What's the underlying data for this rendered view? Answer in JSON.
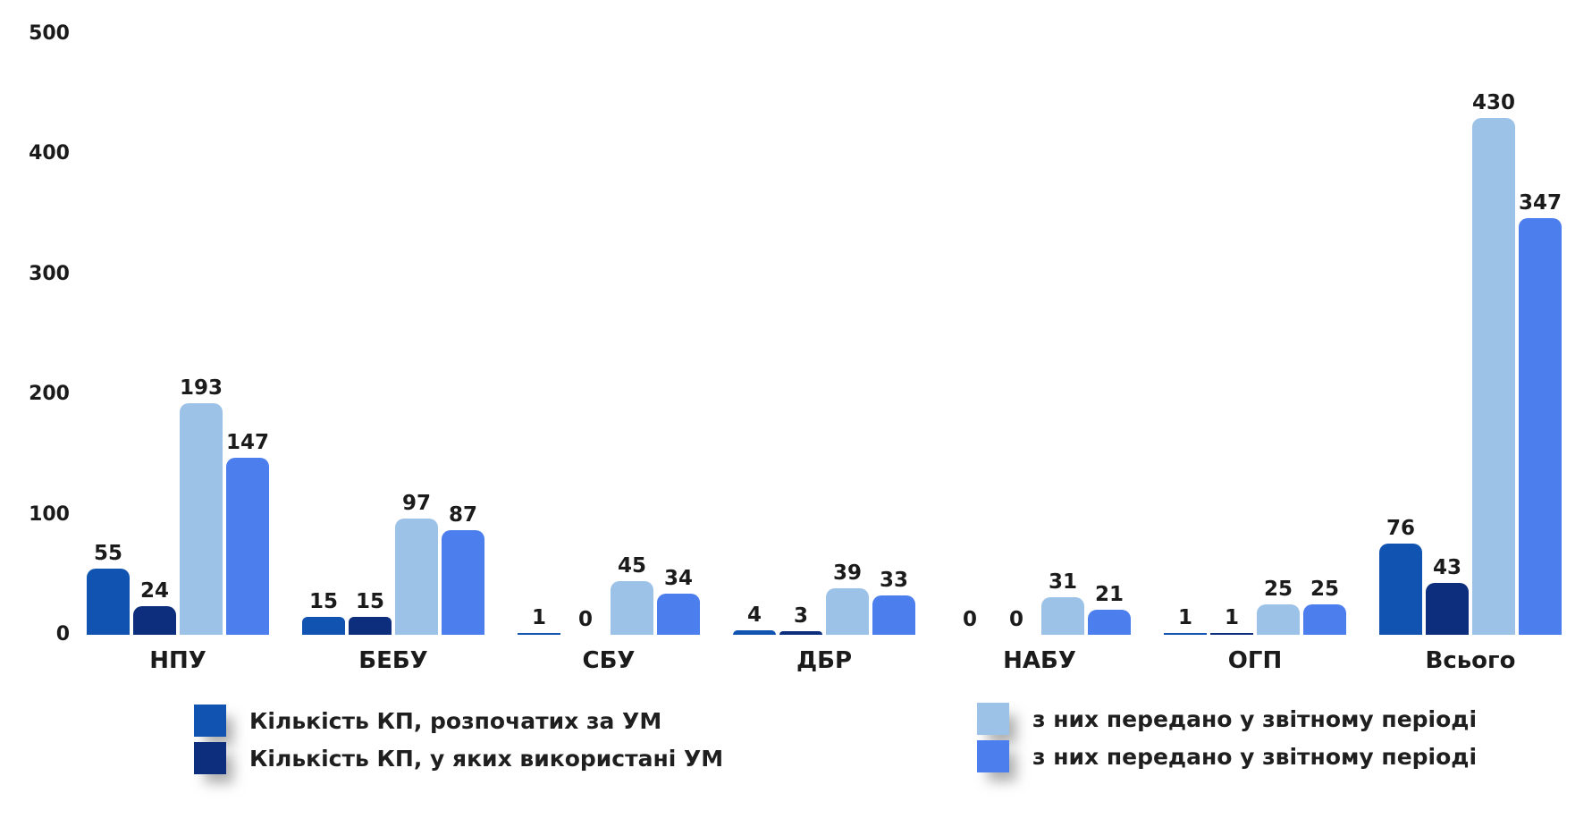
{
  "chart_data": {
    "type": "bar",
    "title": "",
    "xlabel": "",
    "ylabel": "",
    "categories": [
      "НПУ",
      "БЕБУ",
      "СБУ",
      "ДБР",
      "НАБУ",
      "ОГП",
      "Всього"
    ],
    "series": [
      {
        "name": "Кількість КП, розпочатих за УМ",
        "color": "#1053B0",
        "values": [
          55,
          15,
          1,
          4,
          0,
          1,
          76
        ]
      },
      {
        "name": "Кількість КП, у яких використані УМ",
        "color": "#0C2E7D",
        "values": [
          24,
          15,
          0,
          3,
          0,
          1,
          43
        ]
      },
      {
        "name": "з них передано у звітному періоді",
        "color": "#9DC2E7",
        "values": [
          193,
          97,
          45,
          39,
          31,
          25,
          430
        ]
      },
      {
        "name": "з них передано у звітному періоді",
        "color": "#4C7EEE",
        "values": [
          147,
          87,
          34,
          33,
          21,
          25,
          347
        ]
      }
    ],
    "ylim": [
      0,
      500
    ],
    "yticks": [
      0,
      100,
      200,
      300,
      400,
      500
    ],
    "grid": false,
    "legend_position": "bottom, two columns: series 1-2 left, series 3-4 right",
    "bar_labels_shown": true
  },
  "legend": {
    "left_column_series": [
      0,
      1
    ],
    "right_column_series": [
      2,
      3
    ]
  }
}
